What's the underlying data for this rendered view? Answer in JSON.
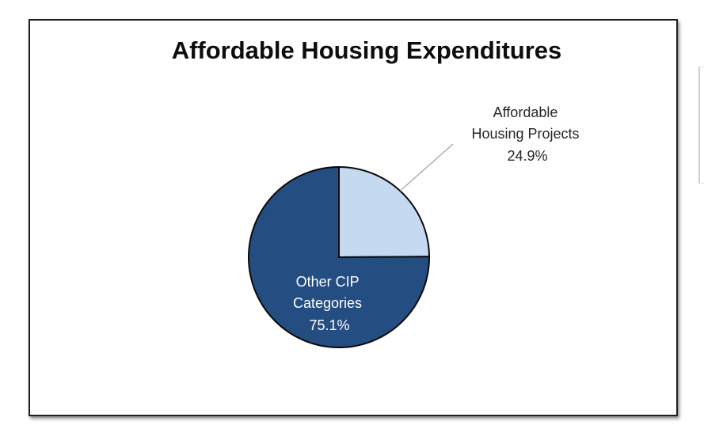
{
  "chart_data": {
    "type": "pie",
    "title": "Affordable Housing Expenditures",
    "slices": [
      {
        "label_lines": [
          "Affordable",
          "Housing Projects"
        ],
        "percent_label": "24.9%",
        "value": 24.9,
        "color": "#c5d9f1"
      },
      {
        "label_lines": [
          "Other CIP",
          "Categories"
        ],
        "percent_label": "75.1%",
        "value": 75.1,
        "color": "#244d82"
      }
    ],
    "colors": {
      "border": "#1e1e1e",
      "slice_outline": "#0a0a0a",
      "leader_line": "#a6a6a6",
      "light_label_text": "#262626",
      "dark_label_text": "#ffffff"
    }
  }
}
